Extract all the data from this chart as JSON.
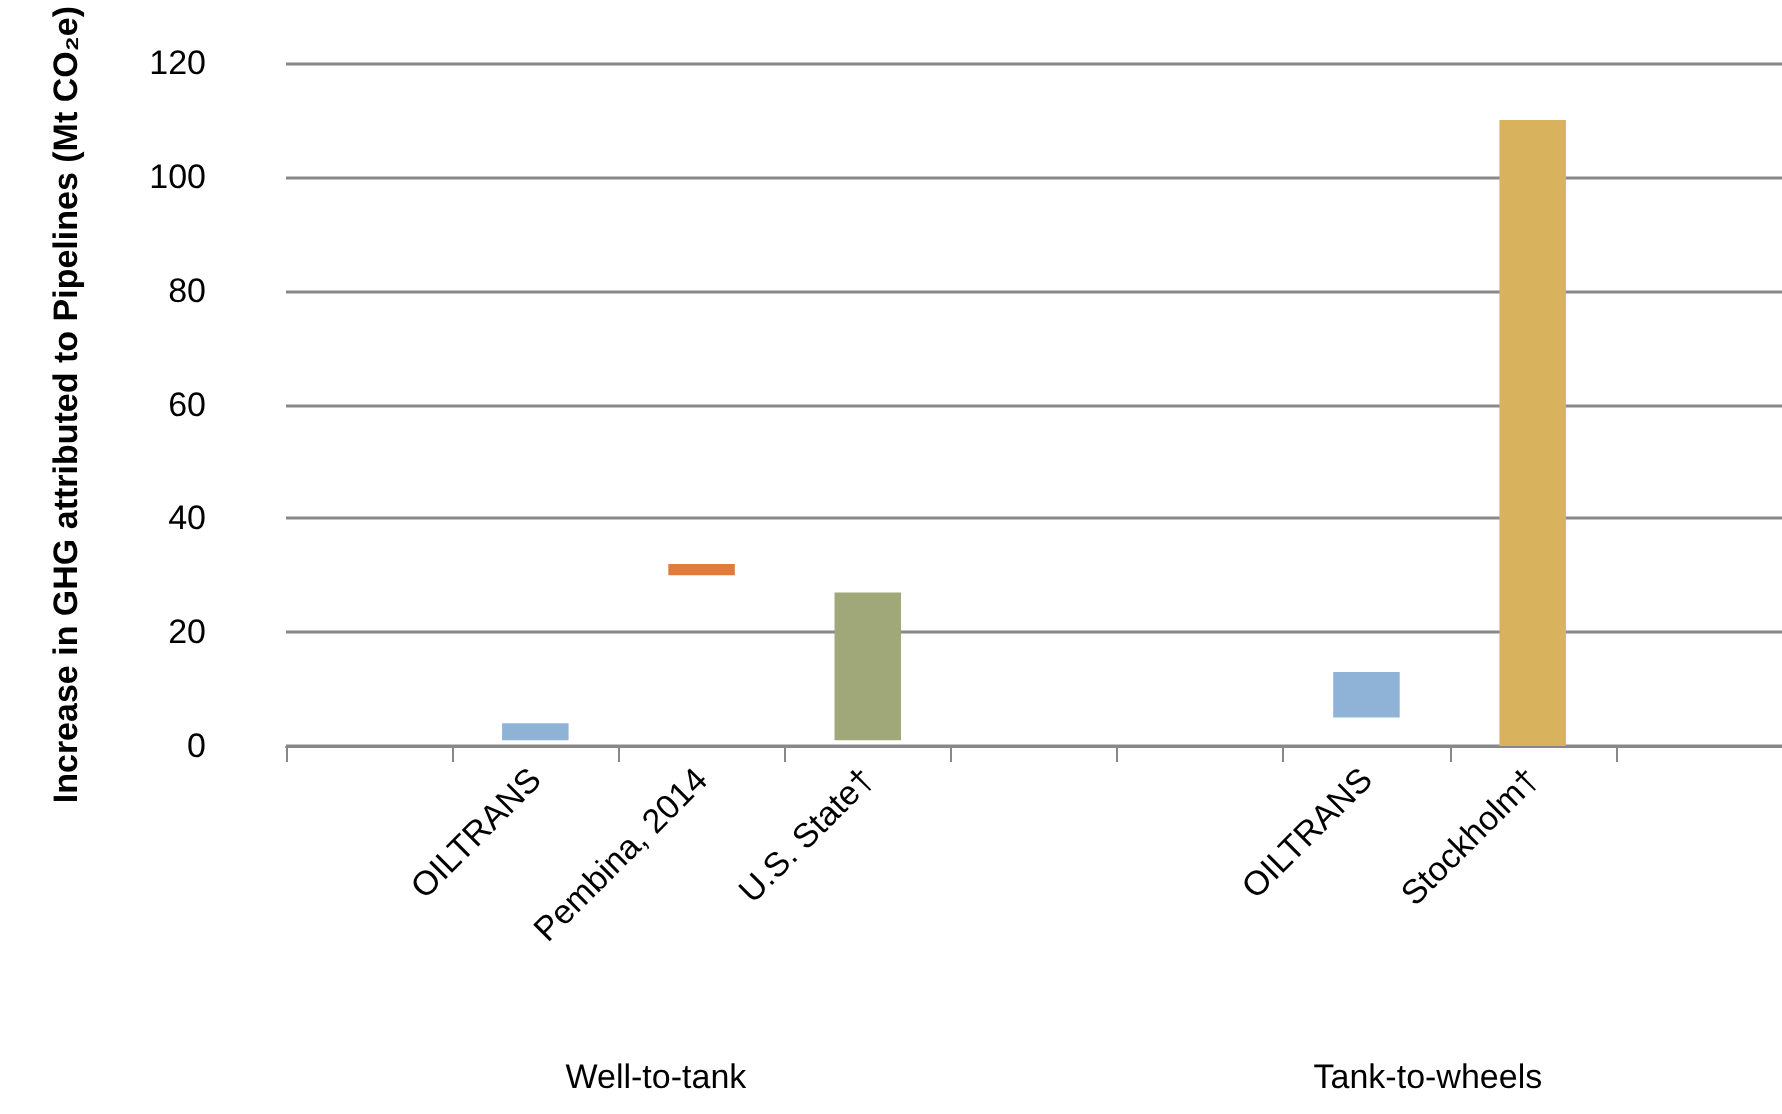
{
  "chart_data": {
    "type": "bar",
    "ylabel": "Increase in GHG attributed to Pipelines (Mt CO₂e)",
    "categories": [
      null,
      "OILTRANS",
      "Pembina, 2014",
      "U.S. State†",
      null,
      null,
      "OILTRANS",
      "Stockholm†",
      null
    ],
    "base": [
      null,
      1,
      30,
      1,
      null,
      null,
      5,
      0,
      null
    ],
    "values": [
      null,
      3,
      2,
      26,
      null,
      null,
      8,
      110,
      null
    ],
    "colors": [
      null,
      "#8fb3d6",
      "#e07b3c",
      "#a0a87a",
      null,
      null,
      "#8fb3d6",
      "#d8b25c",
      null
    ],
    "ylim": [
      0,
      120
    ],
    "yticks": [
      0,
      20,
      40,
      60,
      80,
      100,
      120
    ],
    "grid": "y",
    "annotations": [
      "Well-to-tank",
      "Tank-to-wheels"
    ]
  }
}
